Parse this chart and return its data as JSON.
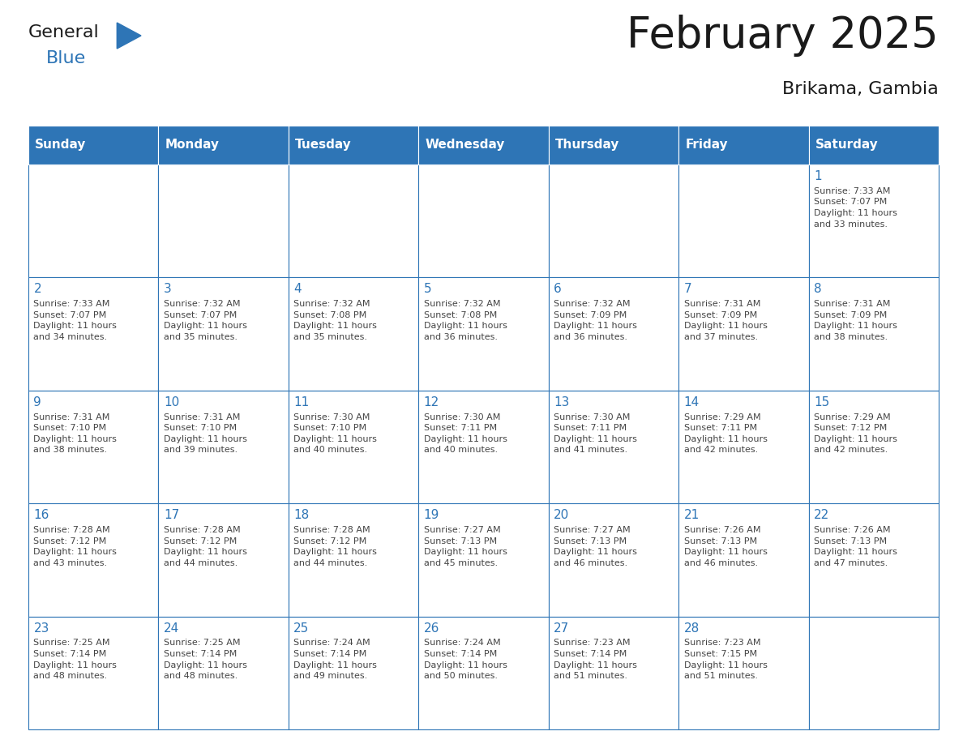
{
  "title": "February 2025",
  "subtitle": "Brikama, Gambia",
  "header_bg": "#2E75B6",
  "header_text_color": "#FFFFFF",
  "cell_bg": "#FFFFFF",
  "border_color": "#2E75B6",
  "day_headers": [
    "Sunday",
    "Monday",
    "Tuesday",
    "Wednesday",
    "Thursday",
    "Friday",
    "Saturday"
  ],
  "title_color": "#1a1a1a",
  "day_num_color": "#2E75B6",
  "info_color": "#444444",
  "logo_general_color": "#1a1a1a",
  "logo_blue_color": "#2E75B6",
  "logo_triangle_color": "#2E75B6",
  "weeks": [
    [
      {
        "day": "",
        "info": ""
      },
      {
        "day": "",
        "info": ""
      },
      {
        "day": "",
        "info": ""
      },
      {
        "day": "",
        "info": ""
      },
      {
        "day": "",
        "info": ""
      },
      {
        "day": "",
        "info": ""
      },
      {
        "day": "1",
        "info": "Sunrise: 7:33 AM\nSunset: 7:07 PM\nDaylight: 11 hours\nand 33 minutes."
      }
    ],
    [
      {
        "day": "2",
        "info": "Sunrise: 7:33 AM\nSunset: 7:07 PM\nDaylight: 11 hours\nand 34 minutes."
      },
      {
        "day": "3",
        "info": "Sunrise: 7:32 AM\nSunset: 7:07 PM\nDaylight: 11 hours\nand 35 minutes."
      },
      {
        "day": "4",
        "info": "Sunrise: 7:32 AM\nSunset: 7:08 PM\nDaylight: 11 hours\nand 35 minutes."
      },
      {
        "day": "5",
        "info": "Sunrise: 7:32 AM\nSunset: 7:08 PM\nDaylight: 11 hours\nand 36 minutes."
      },
      {
        "day": "6",
        "info": "Sunrise: 7:32 AM\nSunset: 7:09 PM\nDaylight: 11 hours\nand 36 minutes."
      },
      {
        "day": "7",
        "info": "Sunrise: 7:31 AM\nSunset: 7:09 PM\nDaylight: 11 hours\nand 37 minutes."
      },
      {
        "day": "8",
        "info": "Sunrise: 7:31 AM\nSunset: 7:09 PM\nDaylight: 11 hours\nand 38 minutes."
      }
    ],
    [
      {
        "day": "9",
        "info": "Sunrise: 7:31 AM\nSunset: 7:10 PM\nDaylight: 11 hours\nand 38 minutes."
      },
      {
        "day": "10",
        "info": "Sunrise: 7:31 AM\nSunset: 7:10 PM\nDaylight: 11 hours\nand 39 minutes."
      },
      {
        "day": "11",
        "info": "Sunrise: 7:30 AM\nSunset: 7:10 PM\nDaylight: 11 hours\nand 40 minutes."
      },
      {
        "day": "12",
        "info": "Sunrise: 7:30 AM\nSunset: 7:11 PM\nDaylight: 11 hours\nand 40 minutes."
      },
      {
        "day": "13",
        "info": "Sunrise: 7:30 AM\nSunset: 7:11 PM\nDaylight: 11 hours\nand 41 minutes."
      },
      {
        "day": "14",
        "info": "Sunrise: 7:29 AM\nSunset: 7:11 PM\nDaylight: 11 hours\nand 42 minutes."
      },
      {
        "day": "15",
        "info": "Sunrise: 7:29 AM\nSunset: 7:12 PM\nDaylight: 11 hours\nand 42 minutes."
      }
    ],
    [
      {
        "day": "16",
        "info": "Sunrise: 7:28 AM\nSunset: 7:12 PM\nDaylight: 11 hours\nand 43 minutes."
      },
      {
        "day": "17",
        "info": "Sunrise: 7:28 AM\nSunset: 7:12 PM\nDaylight: 11 hours\nand 44 minutes."
      },
      {
        "day": "18",
        "info": "Sunrise: 7:28 AM\nSunset: 7:12 PM\nDaylight: 11 hours\nand 44 minutes."
      },
      {
        "day": "19",
        "info": "Sunrise: 7:27 AM\nSunset: 7:13 PM\nDaylight: 11 hours\nand 45 minutes."
      },
      {
        "day": "20",
        "info": "Sunrise: 7:27 AM\nSunset: 7:13 PM\nDaylight: 11 hours\nand 46 minutes."
      },
      {
        "day": "21",
        "info": "Sunrise: 7:26 AM\nSunset: 7:13 PM\nDaylight: 11 hours\nand 46 minutes."
      },
      {
        "day": "22",
        "info": "Sunrise: 7:26 AM\nSunset: 7:13 PM\nDaylight: 11 hours\nand 47 minutes."
      }
    ],
    [
      {
        "day": "23",
        "info": "Sunrise: 7:25 AM\nSunset: 7:14 PM\nDaylight: 11 hours\nand 48 minutes."
      },
      {
        "day": "24",
        "info": "Sunrise: 7:25 AM\nSunset: 7:14 PM\nDaylight: 11 hours\nand 48 minutes."
      },
      {
        "day": "25",
        "info": "Sunrise: 7:24 AM\nSunset: 7:14 PM\nDaylight: 11 hours\nand 49 minutes."
      },
      {
        "day": "26",
        "info": "Sunrise: 7:24 AM\nSunset: 7:14 PM\nDaylight: 11 hours\nand 50 minutes."
      },
      {
        "day": "27",
        "info": "Sunrise: 7:23 AM\nSunset: 7:14 PM\nDaylight: 11 hours\nand 51 minutes."
      },
      {
        "day": "28",
        "info": "Sunrise: 7:23 AM\nSunset: 7:15 PM\nDaylight: 11 hours\nand 51 minutes."
      },
      {
        "day": "",
        "info": ""
      }
    ]
  ]
}
